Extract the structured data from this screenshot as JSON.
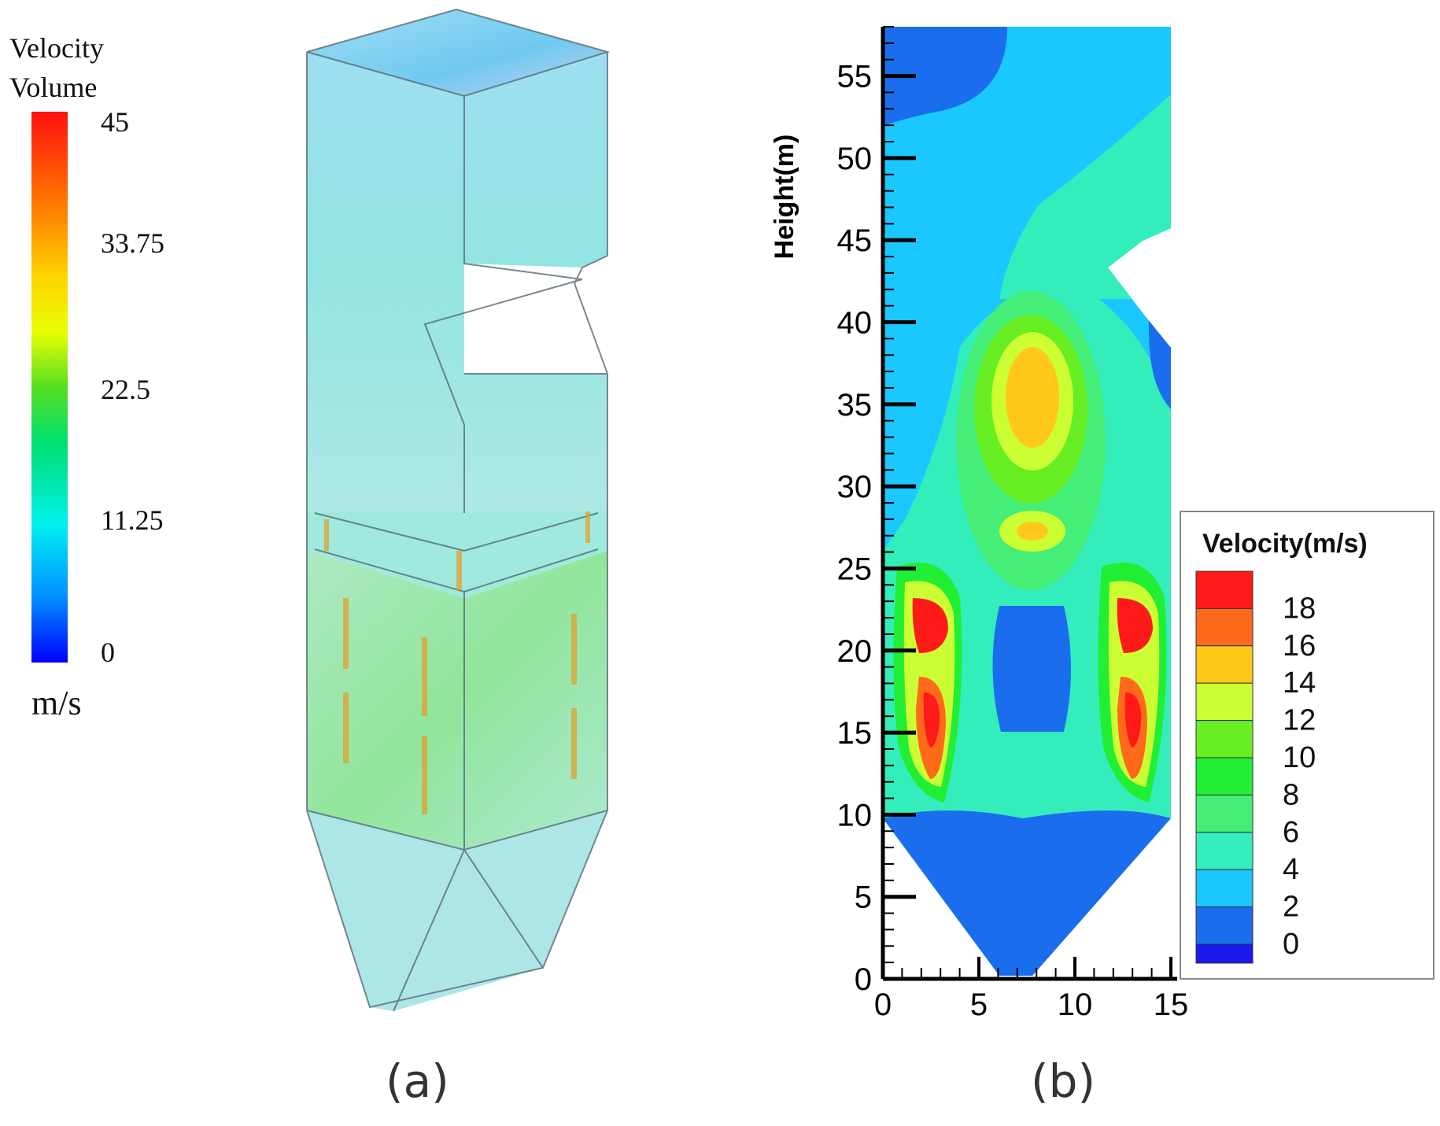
{
  "panels": [
    {
      "label": "(a)",
      "colorbar": {
        "title_line1": "Velocity",
        "title_line2": "Volume",
        "ticks": [
          "45",
          "33.75",
          "22.5",
          "11.25",
          "0"
        ],
        "unit": "m/s",
        "colors": [
          "#ff0000",
          "#ff8c00",
          "#ffff00",
          "#00e020",
          "#00ffff",
          "#0000ff"
        ]
      }
    },
    {
      "label": "(b)"
    }
  ],
  "chart_data": {
    "type": "heatmap",
    "title": "",
    "xlabel": "",
    "ylabel": "Height(m)",
    "xlim": [
      0,
      15
    ],
    "ylim": [
      0,
      58
    ],
    "x_ticks": [
      "0",
      "5",
      "10",
      "15"
    ],
    "y_ticks": [
      "0",
      "5",
      "10",
      "15",
      "20",
      "25",
      "30",
      "35",
      "40",
      "45",
      "50",
      "55"
    ],
    "legend": {
      "title": "Velocity(m/s)",
      "placement": "right",
      "levels": [
        "18",
        "16",
        "14",
        "12",
        "10",
        "8",
        "6",
        "4",
        "2",
        "0"
      ],
      "colors": [
        "#ff1a1a",
        "#ff6a1a",
        "#ffc81a",
        "#ccff33",
        "#66ee22",
        "#22ee33",
        "#44ee77",
        "#33eebb",
        "#1ac8ff",
        "#1a6eee",
        "#1a1aee"
      ]
    },
    "regions": [
      {
        "name": "hopper-low",
        "velocity": "0-2",
        "x_center": 7.5,
        "y_range": [
          0,
          10
        ]
      },
      {
        "name": "left-jet-upper",
        "velocity": "18",
        "x_center": 2.5,
        "y_range": [
          19,
          23
        ]
      },
      {
        "name": "left-jet-lower",
        "velocity": "18",
        "x_center": 3,
        "y_range": [
          12,
          18
        ]
      },
      {
        "name": "right-jet-upper",
        "velocity": "18",
        "x_center": 12,
        "y_range": [
          19,
          23
        ]
      },
      {
        "name": "right-jet-lower",
        "velocity": "18",
        "x_center": 12,
        "y_range": [
          12,
          18
        ]
      },
      {
        "name": "center-core",
        "velocity": "14-16",
        "x_center": 7.5,
        "y_range": [
          31,
          38
        ]
      },
      {
        "name": "center-low",
        "velocity": "0-2",
        "x_center": 7.5,
        "y_range": [
          15,
          23
        ]
      },
      {
        "name": "top-left",
        "velocity": "0-2",
        "x_center": 2,
        "y_range": [
          52,
          58
        ]
      }
    ]
  }
}
